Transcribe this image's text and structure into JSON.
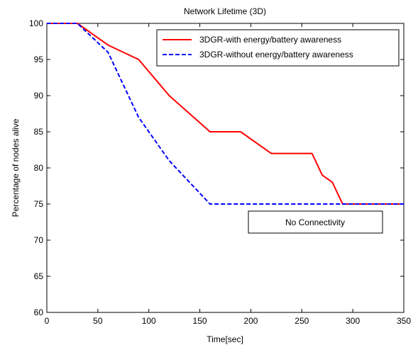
{
  "chart_data": {
    "type": "line",
    "title": "Network Lifetime (3D)",
    "xlabel": "Time[sec]",
    "ylabel": "Percentage of nodes alive",
    "xlim": [
      0,
      350
    ],
    "ylim": [
      60,
      100
    ],
    "xticks": [
      0,
      50,
      100,
      150,
      200,
      250,
      300,
      350
    ],
    "yticks": [
      60,
      65,
      70,
      75,
      80,
      85,
      90,
      95,
      100
    ],
    "grid": false,
    "legend_position": "top-right",
    "series": [
      {
        "name": "3DGR-with energy/battery awareness",
        "color": "#ff0000",
        "style": "solid",
        "x": [
          0,
          30,
          60,
          90,
          120,
          160,
          190,
          220,
          260,
          270,
          280,
          290,
          350
        ],
        "y": [
          100,
          100,
          97,
          95,
          90,
          85,
          85,
          82,
          82,
          79,
          78,
          75,
          75
        ]
      },
      {
        "name": "3DGR-without energy/battery awareness",
        "color": "#0000ff",
        "style": "dashed",
        "x": [
          0,
          30,
          60,
          90,
          120,
          160,
          350
        ],
        "y": [
          100,
          100,
          96,
          87,
          81,
          75,
          75
        ]
      }
    ],
    "annotations": [
      {
        "text": "No Connectivity",
        "x": 305,
        "y": 72.5
      }
    ]
  }
}
